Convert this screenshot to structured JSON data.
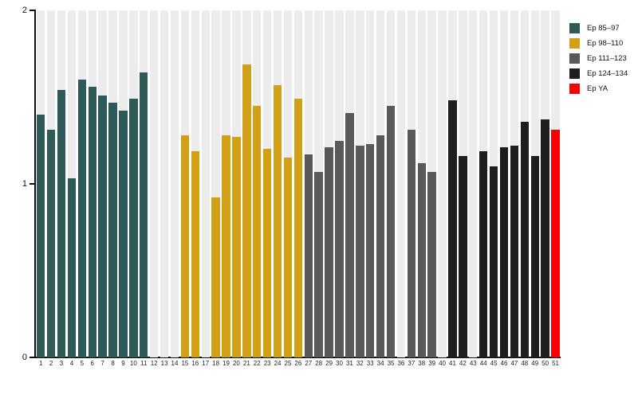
{
  "chart_data": {
    "type": "bar",
    "title": "",
    "xlabel": "",
    "ylabel": "",
    "ylim": [
      0,
      2
    ],
    "yticks": [
      0,
      1,
      2
    ],
    "grid": false,
    "legend_position": "top-right",
    "slot_background": "#ececec",
    "categories": [
      "1",
      "2",
      "3",
      "4",
      "5",
      "6",
      "7",
      "8",
      "9",
      "10",
      "11",
      "12",
      "13",
      "14",
      "15",
      "16",
      "17",
      "18",
      "19",
      "20",
      "21",
      "22",
      "23",
      "24",
      "25",
      "26",
      "27",
      "28",
      "29",
      "30",
      "31",
      "32",
      "33",
      "34",
      "35",
      "36",
      "37",
      "38",
      "39",
      "40",
      "41",
      "42",
      "43",
      "44",
      "45",
      "46",
      "47",
      "48",
      "49",
      "50",
      "51"
    ],
    "values": [
      1.4,
      1.31,
      1.54,
      1.03,
      1.6,
      1.56,
      1.51,
      1.47,
      1.42,
      1.49,
      1.64,
      null,
      null,
      null,
      1.28,
      1.19,
      null,
      0.92,
      1.28,
      1.27,
      1.69,
      1.45,
      1.2,
      1.57,
      1.15,
      1.49,
      1.17,
      1.07,
      1.21,
      1.25,
      1.41,
      1.22,
      1.23,
      1.28,
      1.45,
      null,
      1.31,
      1.12,
      1.07,
      null,
      1.48,
      1.16,
      null,
      1.19,
      1.1,
      1.21,
      1.22,
      1.36,
      1.16,
      1.37,
      1.31
    ],
    "group_index": [
      0,
      0,
      0,
      0,
      0,
      0,
      0,
      0,
      0,
      0,
      0,
      0,
      0,
      1,
      1,
      1,
      1,
      1,
      1,
      1,
      1,
      1,
      1,
      1,
      1,
      1,
      2,
      2,
      2,
      2,
      2,
      2,
      2,
      2,
      2,
      2,
      2,
      2,
      2,
      3,
      3,
      3,
      3,
      3,
      3,
      3,
      3,
      3,
      3,
      3,
      4
    ],
    "series": [
      {
        "name": "Ep 85–97",
        "color": "#2E5A57"
      },
      {
        "name": "Ep 98–110",
        "color": "#D2A017"
      },
      {
        "name": "Ep 111–123",
        "color": "#58595B"
      },
      {
        "name": "Ep 124–134",
        "color": "#1E1E20"
      },
      {
        "name": "Ep YA",
        "color": "#FA0000"
      }
    ]
  },
  "legend": {
    "items": [
      {
        "label": "Ep 85–97",
        "color": "#2E5A57"
      },
      {
        "label": "Ep 98–110",
        "color": "#D2A017"
      },
      {
        "label": "Ep 111–123",
        "color": "#58595B"
      },
      {
        "label": "Ep 124–134",
        "color": "#1E1E20"
      },
      {
        "label": "Ep YA",
        "color": "#FA0000"
      }
    ]
  },
  "axes": {
    "y_tick_labels": [
      "0",
      "1",
      "2"
    ]
  }
}
